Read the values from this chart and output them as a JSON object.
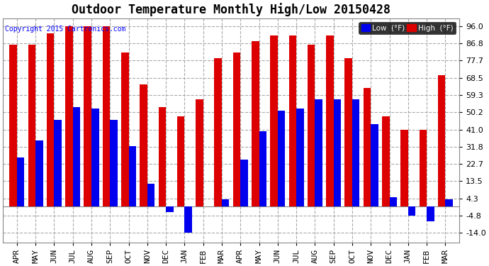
{
  "title": "Outdoor Temperature Monthly High/Low 20150428",
  "copyright": "Copyright 2015 Cartronics.com",
  "legend_low_label": "Low  (°F)",
  "legend_high_label": "High  (°F)",
  "low_color": "#0000ee",
  "high_color": "#dd0000",
  "background_color": "#ffffff",
  "plot_bg_color": "#ffffff",
  "months": [
    "APR",
    "MAY",
    "JUN",
    "JUL",
    "AUG",
    "SEP",
    "OCT",
    "NOV",
    "DEC",
    "JAN",
    "FEB",
    "MAR",
    "APR",
    "MAY",
    "JUN",
    "JUL",
    "AUG",
    "SEP",
    "OCT",
    "NOV",
    "DEC",
    "JAN",
    "FEB",
    "MAR"
  ],
  "highs": [
    86.0,
    86.0,
    92.0,
    96.0,
    96.0,
    96.0,
    82.0,
    65.0,
    53.0,
    48.0,
    57.0,
    79.0,
    82.0,
    88.0,
    91.0,
    91.0,
    86.0,
    91.0,
    79.0,
    63.0,
    48.0,
    41.0,
    41.0,
    70.0
  ],
  "lows": [
    26.0,
    35.0,
    46.0,
    53.0,
    52.0,
    46.0,
    32.0,
    12.0,
    -3.0,
    -14.0,
    0.0,
    4.0,
    25.0,
    40.0,
    51.0,
    52.0,
    57.0,
    57.0,
    57.0,
    44.0,
    5.0,
    -5.0,
    -8.0,
    4.0
  ],
  "ytick_vals": [
    -14.0,
    -4.8,
    4.3,
    13.5,
    22.7,
    31.8,
    41.0,
    50.2,
    59.3,
    68.5,
    77.7,
    86.8,
    96.0
  ],
  "ytick_labels": [
    "-14.0",
    "-4.8",
    "4.3",
    "13.5",
    "22.7",
    "31.8",
    "41.0",
    "50.2",
    "59.3",
    "68.5",
    "77.7",
    "86.8",
    "96.0"
  ],
  "ylim_min": -19,
  "ylim_max": 100,
  "grid_color": "#aaaaaa",
  "title_fontsize": 12,
  "tick_fontsize": 8,
  "bar_width": 0.4,
  "fig_width": 6.9,
  "fig_height": 3.75,
  "dpi": 100
}
